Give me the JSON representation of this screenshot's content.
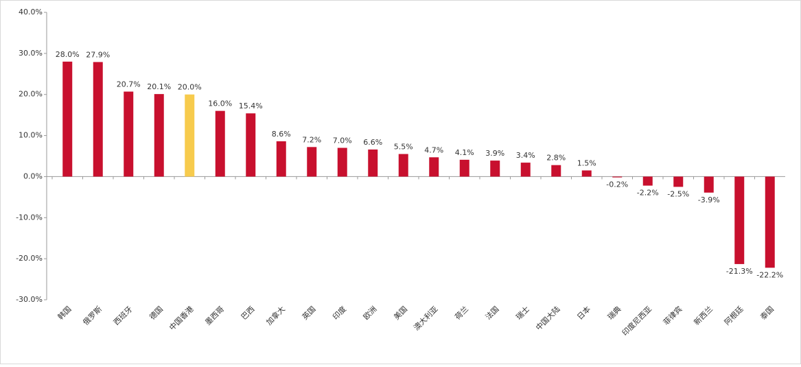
{
  "chart_data": {
    "type": "bar",
    "categories": [
      "韩国",
      "俄罗斯",
      "西班牙",
      "德国",
      "中国香港",
      "墨西哥",
      "巴西",
      "加拿大",
      "英国",
      "印度",
      "欧洲",
      "美国",
      "澳大利亚",
      "荷兰",
      "法国",
      "瑞士",
      "中国大陆",
      "日本",
      "瑞典",
      "印度尼西亚",
      "菲律宾",
      "新西兰",
      "阿根廷",
      "泰国"
    ],
    "values": [
      28.0,
      27.9,
      20.7,
      20.1,
      20.0,
      16.0,
      15.4,
      8.6,
      7.2,
      7.0,
      6.6,
      5.5,
      4.7,
      4.1,
      3.9,
      3.4,
      2.8,
      1.5,
      -0.2,
      -2.2,
      -2.5,
      -3.9,
      -21.3,
      -22.2
    ],
    "value_labels": [
      "28.0%",
      "27.9%",
      "20.7%",
      "20.1%",
      "20.0%",
      "16.0%",
      "15.4%",
      "8.6%",
      "7.2%",
      "7.0%",
      "6.6%",
      "5.5%",
      "4.7%",
      "4.1%",
      "3.9%",
      "3.4%",
      "2.8%",
      "1.5%",
      "-0.2%",
      "-2.2%",
      "-2.5%",
      "-3.9%",
      "-21.3%",
      "-22.2%"
    ],
    "colors": [
      "#c8102e",
      "#c8102e",
      "#c8102e",
      "#c8102e",
      "#f7cb4d",
      "#c8102e",
      "#c8102e",
      "#c8102e",
      "#c8102e",
      "#c8102e",
      "#c8102e",
      "#c8102e",
      "#c8102e",
      "#c8102e",
      "#c8102e",
      "#c8102e",
      "#c8102e",
      "#c8102e",
      "#c8102e",
      "#c8102e",
      "#c8102e",
      "#c8102e",
      "#c8102e",
      "#c8102e"
    ],
    "ylim": [
      -30,
      40
    ],
    "yticks": [
      {
        "value": -30,
        "label": "-30.0%"
      },
      {
        "value": -20,
        "label": "-20.0%"
      },
      {
        "value": -10,
        "label": "-10.0%"
      },
      {
        "value": 0,
        "label": "0.0%"
      },
      {
        "value": 10,
        "label": "10.0%"
      },
      {
        "value": 20,
        "label": "20.0%"
      },
      {
        "value": 30,
        "label": "30.0%"
      },
      {
        "value": 40,
        "label": "40.0%"
      }
    ]
  }
}
